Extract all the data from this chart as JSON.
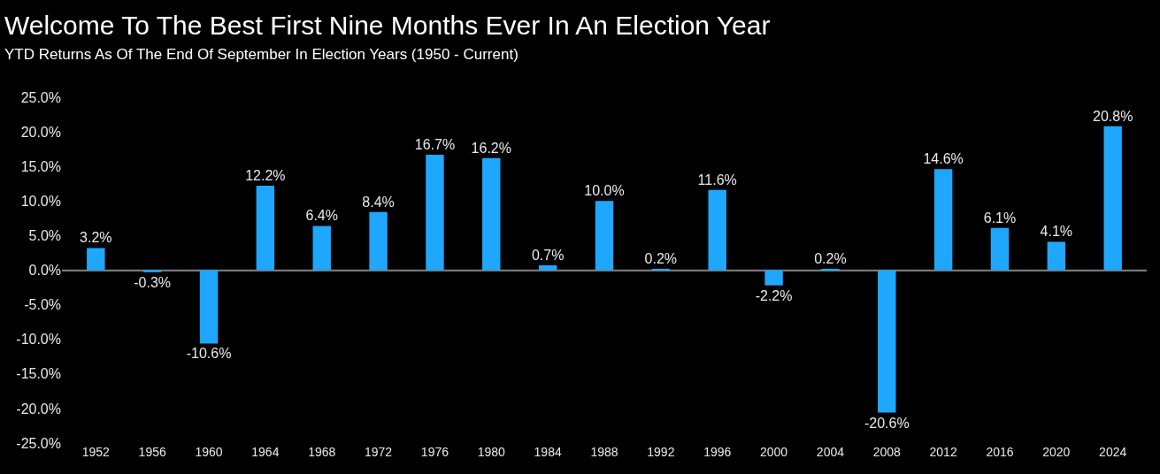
{
  "chart_data": {
    "type": "bar",
    "title": "Welcome To The Best First Nine Months Ever In An Election Year",
    "subtitle": "YTD Returns As Of The End Of September In Election Years (1950 - Current)",
    "categories": [
      "1952",
      "1956",
      "1960",
      "1964",
      "1968",
      "1972",
      "1976",
      "1980",
      "1984",
      "1988",
      "1992",
      "1996",
      "2000",
      "2004",
      "2008",
      "2012",
      "2016",
      "2020",
      "2024"
    ],
    "values": [
      3.2,
      -0.3,
      -10.6,
      12.2,
      6.4,
      8.4,
      16.7,
      16.2,
      0.7,
      10.0,
      0.2,
      11.6,
      -2.2,
      0.2,
      -20.6,
      14.6,
      6.1,
      4.1,
      20.8
    ],
    "value_labels": [
      "3.2%",
      "-0.3%",
      "-10.6%",
      "12.2%",
      "6.4%",
      "8.4%",
      "16.7%",
      "16.2%",
      "0.7%",
      "10.0%",
      "0.2%",
      "11.6%",
      "-2.2%",
      "0.2%",
      "-20.6%",
      "14.6%",
      "6.1%",
      "4.1%",
      "20.8%"
    ],
    "color": "#1ea7fd",
    "ylim": [
      -25,
      25
    ],
    "yticks": [
      {
        "value": 25,
        "label": "25.0%"
      },
      {
        "value": 20,
        "label": "20.0%"
      },
      {
        "value": 15,
        "label": "15.0%"
      },
      {
        "value": 10,
        "label": "10.0%"
      },
      {
        "value": 5,
        "label": "5.0%"
      },
      {
        "value": 0,
        "label": "0.0%"
      },
      {
        "value": -5,
        "label": "-5.0%"
      },
      {
        "value": -10,
        "label": "-10.0%"
      },
      {
        "value": -15,
        "label": "-15.0%"
      },
      {
        "value": -20,
        "label": "-20.0%"
      },
      {
        "value": -25,
        "label": "-25.0%"
      }
    ],
    "ref_lines": [
      {
        "axis": "y",
        "value": 0,
        "color": "#777777"
      }
    ]
  }
}
